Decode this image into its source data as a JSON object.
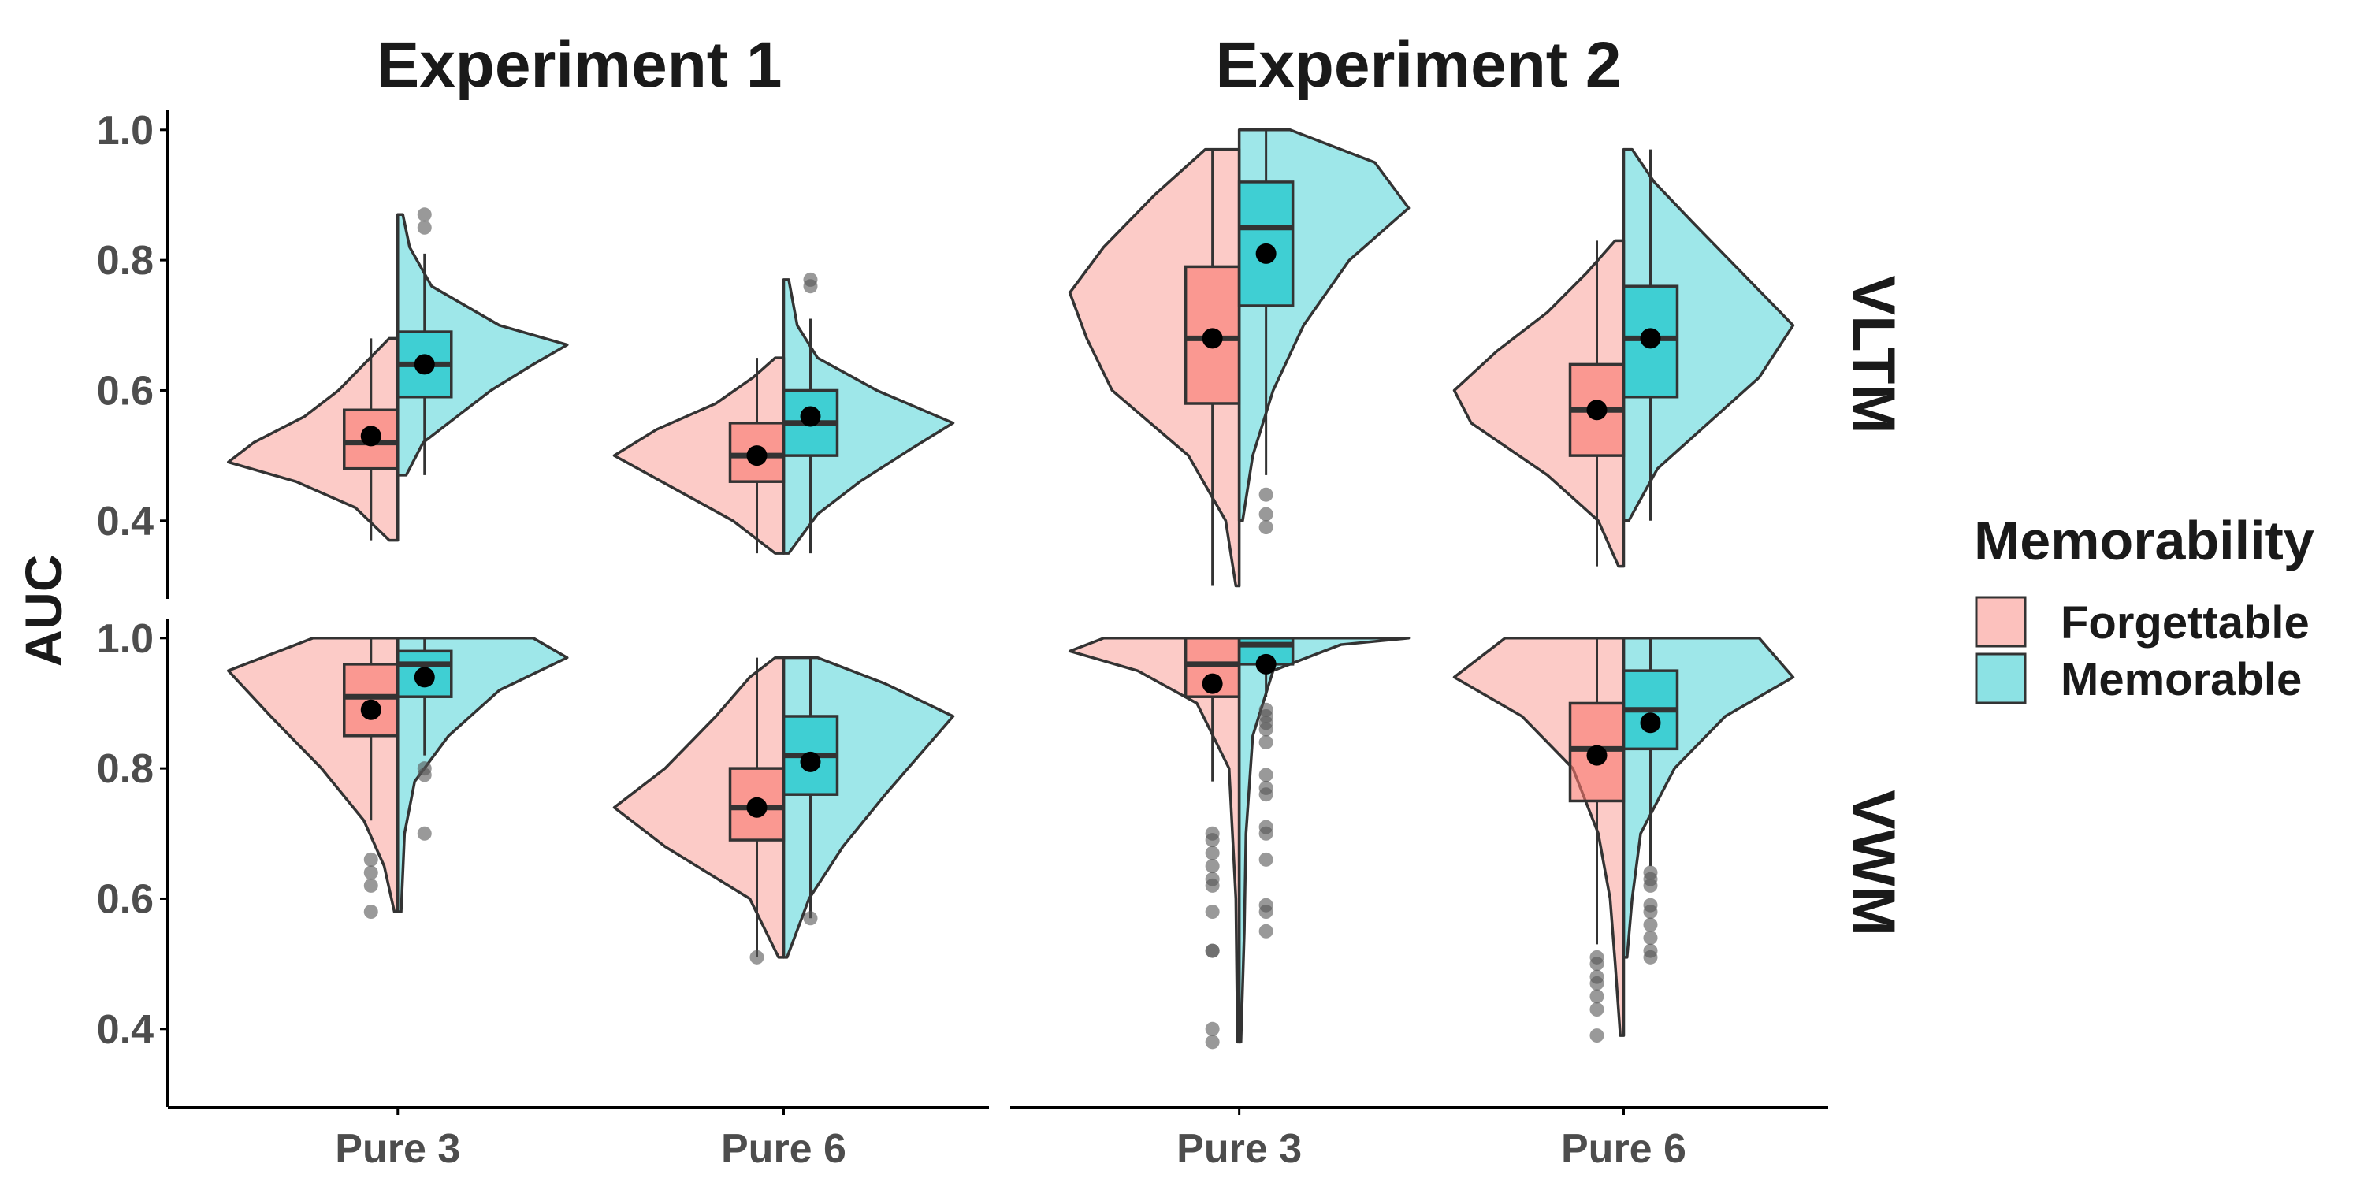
{
  "colors": {
    "forgettable": "#F8766D",
    "memorable": "#00BFC4",
    "outline": "#333333",
    "mean_dot": "#000000",
    "outlier": "#555555",
    "axis": "#000000"
  },
  "chart_data": {
    "type": "violin-box",
    "y_label": "AUC",
    "ylim": [
      0.28,
      1.03
    ],
    "y_ticks": [
      0.4,
      0.6,
      0.8,
      1.0
    ],
    "y_tick_labels": [
      "0.4",
      "0.6",
      "0.8",
      "1.0"
    ],
    "categories": [
      "Pure 3",
      "Pure 6"
    ],
    "columns": [
      "Experiment 1",
      "Experiment 2"
    ],
    "rows": [
      "VLTM",
      "VWM"
    ],
    "legend": {
      "title": "Memorability",
      "entries": [
        {
          "label": "Forgettable",
          "key": "forgettable"
        },
        {
          "label": "Memorable",
          "key": "memorable"
        }
      ]
    },
    "grid": false,
    "legend_position": "right",
    "panels": [
      {
        "column": "Experiment 1",
        "row": "VLTM",
        "groups": [
          {
            "category": "Pure 3",
            "series": "Forgettable",
            "box": {
              "q1": 0.48,
              "median": 0.52,
              "q3": 0.57,
              "whisker_low": 0.37,
              "whisker_high": 0.68
            },
            "mean": 0.53,
            "outliers": [],
            "violin": [
              [
                0.37,
                0.05
              ],
              [
                0.42,
                0.25
              ],
              [
                0.46,
                0.6
              ],
              [
                0.49,
                1.0
              ],
              [
                0.52,
                0.85
              ],
              [
                0.56,
                0.55
              ],
              [
                0.6,
                0.35
              ],
              [
                0.64,
                0.2
              ],
              [
                0.68,
                0.05
              ]
            ]
          },
          {
            "category": "Pure 3",
            "series": "Memorable",
            "box": {
              "q1": 0.59,
              "median": 0.64,
              "q3": 0.69,
              "whisker_low": 0.47,
              "whisker_high": 0.81
            },
            "mean": 0.64,
            "outliers": [
              0.85,
              0.87
            ],
            "violin": [
              [
                0.47,
                0.05
              ],
              [
                0.52,
                0.15
              ],
              [
                0.56,
                0.35
              ],
              [
                0.6,
                0.55
              ],
              [
                0.64,
                0.8
              ],
              [
                0.67,
                1.0
              ],
              [
                0.7,
                0.6
              ],
              [
                0.76,
                0.2
              ],
              [
                0.82,
                0.07
              ],
              [
                0.87,
                0.03
              ]
            ]
          },
          {
            "category": "Pure 6",
            "series": "Forgettable",
            "box": {
              "q1": 0.46,
              "median": 0.5,
              "q3": 0.55,
              "whisker_low": 0.35,
              "whisker_high": 0.65
            },
            "mean": 0.5,
            "outliers": [],
            "violin": [
              [
                0.35,
                0.05
              ],
              [
                0.4,
                0.3
              ],
              [
                0.45,
                0.65
              ],
              [
                0.5,
                1.0
              ],
              [
                0.54,
                0.75
              ],
              [
                0.58,
                0.4
              ],
              [
                0.62,
                0.18
              ],
              [
                0.65,
                0.05
              ]
            ]
          },
          {
            "category": "Pure 6",
            "series": "Memorable",
            "box": {
              "q1": 0.5,
              "median": 0.55,
              "q3": 0.6,
              "whisker_low": 0.35,
              "whisker_high": 0.71
            },
            "mean": 0.56,
            "outliers": [
              0.76,
              0.77
            ],
            "violin": [
              [
                0.35,
                0.03
              ],
              [
                0.41,
                0.2
              ],
              [
                0.46,
                0.45
              ],
              [
                0.51,
                0.75
              ],
              [
                0.55,
                1.0
              ],
              [
                0.6,
                0.55
              ],
              [
                0.65,
                0.2
              ],
              [
                0.7,
                0.08
              ],
              [
                0.77,
                0.03
              ]
            ]
          }
        ]
      },
      {
        "column": "Experiment 2",
        "row": "VLTM",
        "groups": [
          {
            "category": "Pure 3",
            "series": "Forgettable",
            "box": {
              "q1": 0.58,
              "median": 0.68,
              "q3": 0.79,
              "whisker_low": 0.3,
              "whisker_high": 0.97
            },
            "mean": 0.68,
            "outliers": [],
            "violin": [
              [
                0.3,
                0.02
              ],
              [
                0.4,
                0.08
              ],
              [
                0.5,
                0.3
              ],
              [
                0.6,
                0.75
              ],
              [
                0.68,
                0.9
              ],
              [
                0.75,
                1.0
              ],
              [
                0.82,
                0.8
              ],
              [
                0.9,
                0.5
              ],
              [
                0.97,
                0.2
              ]
            ]
          },
          {
            "category": "Pure 3",
            "series": "Memorable",
            "box": {
              "q1": 0.73,
              "median": 0.85,
              "q3": 0.92,
              "whisker_low": 0.47,
              "whisker_high": 1.0
            },
            "mean": 0.81,
            "outliers": [
              0.39,
              0.41,
              0.44
            ],
            "violin": [
              [
                0.4,
                0.02
              ],
              [
                0.5,
                0.08
              ],
              [
                0.6,
                0.2
              ],
              [
                0.7,
                0.38
              ],
              [
                0.8,
                0.65
              ],
              [
                0.88,
                1.0
              ],
              [
                0.95,
                0.8
              ],
              [
                1.0,
                0.3
              ]
            ]
          },
          {
            "category": "Pure 6",
            "series": "Forgettable",
            "box": {
              "q1": 0.5,
              "median": 0.57,
              "q3": 0.64,
              "whisker_low": 0.33,
              "whisker_high": 0.83
            },
            "mean": 0.57,
            "outliers": [],
            "violin": [
              [
                0.33,
                0.03
              ],
              [
                0.4,
                0.15
              ],
              [
                0.47,
                0.45
              ],
              [
                0.55,
                0.9
              ],
              [
                0.6,
                1.0
              ],
              [
                0.66,
                0.75
              ],
              [
                0.72,
                0.45
              ],
              [
                0.78,
                0.22
              ],
              [
                0.83,
                0.05
              ]
            ]
          },
          {
            "category": "Pure 6",
            "series": "Memorable",
            "box": {
              "q1": 0.59,
              "median": 0.68,
              "q3": 0.76,
              "whisker_low": 0.4,
              "whisker_high": 0.97
            },
            "mean": 0.68,
            "outliers": [],
            "violin": [
              [
                0.4,
                0.03
              ],
              [
                0.48,
                0.2
              ],
              [
                0.55,
                0.5
              ],
              [
                0.62,
                0.8
              ],
              [
                0.7,
                1.0
              ],
              [
                0.78,
                0.7
              ],
              [
                0.86,
                0.4
              ],
              [
                0.92,
                0.18
              ],
              [
                0.97,
                0.05
              ]
            ]
          }
        ]
      },
      {
        "column": "Experiment 1",
        "row": "VWM",
        "groups": [
          {
            "category": "Pure 3",
            "series": "Forgettable",
            "box": {
              "q1": 0.85,
              "median": 0.91,
              "q3": 0.96,
              "whisker_low": 0.72,
              "whisker_high": 1.0
            },
            "mean": 0.89,
            "outliers": [
              0.58,
              0.62,
              0.64,
              0.66
            ],
            "violin": [
              [
                0.58,
                0.02
              ],
              [
                0.65,
                0.08
              ],
              [
                0.72,
                0.2
              ],
              [
                0.8,
                0.45
              ],
              [
                0.88,
                0.75
              ],
              [
                0.95,
                1.0
              ],
              [
                1.0,
                0.5
              ]
            ]
          },
          {
            "category": "Pure 3",
            "series": "Memorable",
            "box": {
              "q1": 0.91,
              "median": 0.96,
              "q3": 0.98,
              "whisker_low": 0.82,
              "whisker_high": 1.0
            },
            "mean": 0.94,
            "outliers": [
              0.7,
              0.79,
              0.8
            ],
            "violin": [
              [
                0.58,
                0.02
              ],
              [
                0.7,
                0.04
              ],
              [
                0.78,
                0.1
              ],
              [
                0.85,
                0.3
              ],
              [
                0.92,
                0.6
              ],
              [
                0.97,
                1.0
              ],
              [
                1.0,
                0.8
              ]
            ]
          },
          {
            "category": "Pure 6",
            "series": "Forgettable",
            "box": {
              "q1": 0.69,
              "median": 0.74,
              "q3": 0.8,
              "whisker_low": 0.51,
              "whisker_high": 0.97
            },
            "mean": 0.74,
            "outliers": [
              0.51
            ],
            "violin": [
              [
                0.51,
                0.03
              ],
              [
                0.6,
                0.2
              ],
              [
                0.68,
                0.7
              ],
              [
                0.74,
                1.0
              ],
              [
                0.8,
                0.7
              ],
              [
                0.88,
                0.4
              ],
              [
                0.94,
                0.2
              ],
              [
                0.97,
                0.05
              ]
            ]
          },
          {
            "category": "Pure 6",
            "series": "Memorable",
            "box": {
              "q1": 0.76,
              "median": 0.82,
              "q3": 0.88,
              "whisker_low": 0.57,
              "whisker_high": 0.97
            },
            "mean": 0.81,
            "outliers": [
              0.57
            ],
            "violin": [
              [
                0.51,
                0.02
              ],
              [
                0.6,
                0.15
              ],
              [
                0.68,
                0.35
              ],
              [
                0.76,
                0.6
              ],
              [
                0.82,
                0.8
              ],
              [
                0.88,
                1.0
              ],
              [
                0.93,
                0.6
              ],
              [
                0.97,
                0.2
              ]
            ]
          }
        ]
      },
      {
        "column": "Experiment 2",
        "row": "VWM",
        "groups": [
          {
            "category": "Pure 3",
            "series": "Forgettable",
            "box": {
              "q1": 0.91,
              "median": 0.96,
              "q3": 1.0,
              "whisker_low": 0.78,
              "whisker_high": 1.0
            },
            "mean": 0.93,
            "outliers": [
              0.38,
              0.4,
              0.52,
              0.52,
              0.58,
              0.62,
              0.63,
              0.65,
              0.67,
              0.69,
              0.7
            ],
            "violin": [
              [
                0.38,
                0.01
              ],
              [
                0.6,
                0.02
              ],
              [
                0.8,
                0.06
              ],
              [
                0.9,
                0.25
              ],
              [
                0.95,
                0.6
              ],
              [
                0.98,
                1.0
              ],
              [
                1.0,
                0.8
              ]
            ]
          },
          {
            "category": "Pure 3",
            "series": "Memorable",
            "box": {
              "q1": 0.96,
              "median": 0.99,
              "q3": 1.0,
              "whisker_low": 0.91,
              "whisker_high": 1.0
            },
            "mean": 0.96,
            "outliers": [
              0.55,
              0.58,
              0.59,
              0.66,
              0.7,
              0.71,
              0.76,
              0.77,
              0.79,
              0.84,
              0.86,
              0.87,
              0.88,
              0.89
            ],
            "violin": [
              [
                0.38,
                0.01
              ],
              [
                0.55,
                0.03
              ],
              [
                0.7,
                0.04
              ],
              [
                0.85,
                0.08
              ],
              [
                0.95,
                0.2
              ],
              [
                0.99,
                0.6
              ],
              [
                1.0,
                1.0
              ]
            ]
          },
          {
            "category": "Pure 6",
            "series": "Forgettable",
            "box": {
              "q1": 0.75,
              "median": 0.83,
              "q3": 0.9,
              "whisker_low": 0.53,
              "whisker_high": 1.0
            },
            "mean": 0.82,
            "outliers": [
              0.39,
              0.43,
              0.45,
              0.47,
              0.48,
              0.5,
              0.51
            ],
            "violin": [
              [
                0.39,
                0.02
              ],
              [
                0.5,
                0.05
              ],
              [
                0.6,
                0.08
              ],
              [
                0.7,
                0.15
              ],
              [
                0.8,
                0.3
              ],
              [
                0.88,
                0.6
              ],
              [
                0.94,
                1.0
              ],
              [
                1.0,
                0.7
              ]
            ]
          },
          {
            "category": "Pure 6",
            "series": "Memorable",
            "box": {
              "q1": 0.83,
              "median": 0.89,
              "q3": 0.95,
              "whisker_low": 0.65,
              "whisker_high": 1.0
            },
            "mean": 0.87,
            "outliers": [
              0.51,
              0.52,
              0.54,
              0.56,
              0.58,
              0.59,
              0.62,
              0.63,
              0.64
            ],
            "violin": [
              [
                0.51,
                0.02
              ],
              [
                0.6,
                0.05
              ],
              [
                0.7,
                0.1
              ],
              [
                0.8,
                0.3
              ],
              [
                0.88,
                0.6
              ],
              [
                0.94,
                1.0
              ],
              [
                1.0,
                0.8
              ]
            ]
          }
        ]
      }
    ]
  }
}
